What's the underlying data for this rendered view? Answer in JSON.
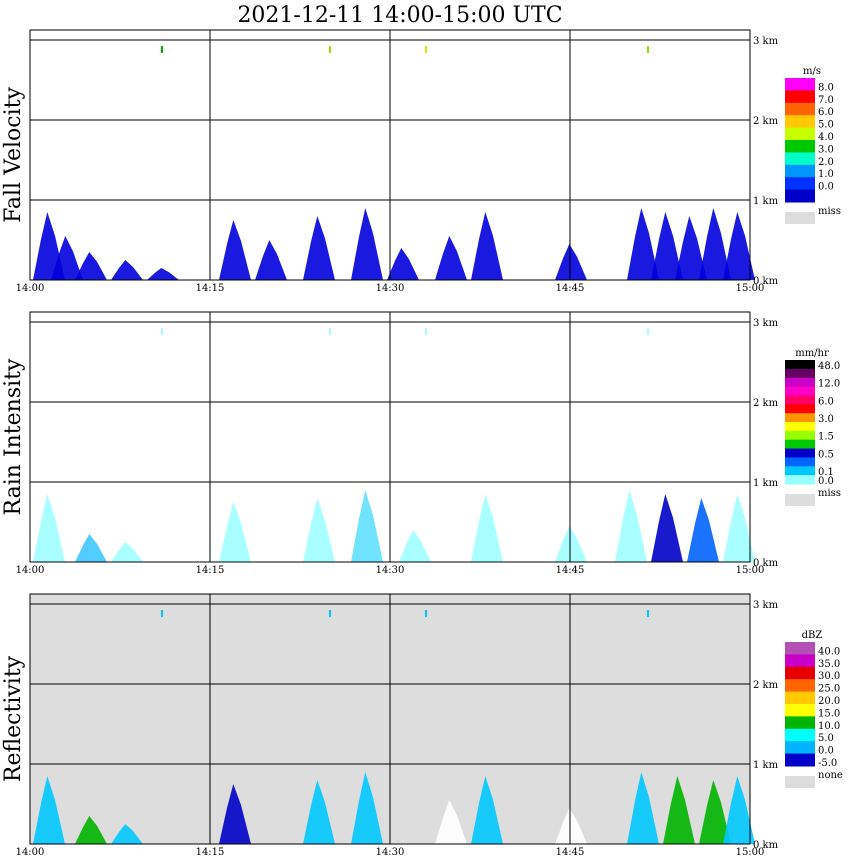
{
  "title": "2021-12-11   14:00-15:00 UTC",
  "x_ticks": [
    "14:00",
    "14:15",
    "14:30",
    "14:45",
    "15:00"
  ],
  "height_ticks": [
    "0 km",
    "1 km",
    "2 km",
    "3 km"
  ],
  "panels": [
    {
      "id": "fall-velocity",
      "label": "Fall Velocity",
      "unit": "m/s",
      "background": "#ffffff",
      "scale": [
        {
          "label": "8.0",
          "color": "#ff00ff"
        },
        {
          "label": "7.0",
          "color": "#ff0000"
        },
        {
          "label": "6.0",
          "color": "#ff6400"
        },
        {
          "label": "5.0",
          "color": "#ffc800"
        },
        {
          "label": "4.0",
          "color": "#c8ff00"
        },
        {
          "label": "3.0",
          "color": "#00c800"
        },
        {
          "label": "2.0",
          "color": "#00ffc8"
        },
        {
          "label": "1.0",
          "color": "#0096ff"
        },
        {
          "label": "0.0",
          "color": "#0032ff"
        },
        {
          "label": "",
          "color": "#0000c8"
        }
      ],
      "miss_label": "miss",
      "echo": [
        {
          "t": 1.5,
          "h": 0.85,
          "color": "#0000dd"
        },
        {
          "t": 3.0,
          "h": 0.55,
          "color": "#0000dd"
        },
        {
          "t": 5.0,
          "h": 0.35,
          "color": "#0000dd"
        },
        {
          "t": 8.0,
          "h": 0.25,
          "color": "#0000dd"
        },
        {
          "t": 11.0,
          "h": 0.15,
          "color": "#0000dd"
        },
        {
          "t": 17.0,
          "h": 0.75,
          "color": "#0000dd"
        },
        {
          "t": 20.0,
          "h": 0.5,
          "color": "#0000dd"
        },
        {
          "t": 24.0,
          "h": 0.8,
          "color": "#0000dd"
        },
        {
          "t": 28.0,
          "h": 0.9,
          "color": "#0000dd"
        },
        {
          "t": 31.0,
          "h": 0.4,
          "color": "#0000dd"
        },
        {
          "t": 35.0,
          "h": 0.55,
          "color": "#0000dd"
        },
        {
          "t": 38.0,
          "h": 0.85,
          "color": "#0000dd"
        },
        {
          "t": 45.0,
          "h": 0.45,
          "color": "#0000dd"
        },
        {
          "t": 51.0,
          "h": 0.9,
          "color": "#0000dd"
        },
        {
          "t": 53.0,
          "h": 0.85,
          "color": "#0000dd"
        },
        {
          "t": 55.0,
          "h": 0.8,
          "color": "#0000dd"
        },
        {
          "t": 57.0,
          "h": 0.9,
          "color": "#0000dd"
        },
        {
          "t": 59.0,
          "h": 0.85,
          "color": "#0000dd"
        }
      ],
      "flecks": [
        {
          "t": 11.0,
          "h": 2.9,
          "color": "#00aa00"
        },
        {
          "t": 25.0,
          "h": 2.9,
          "color": "#a0e000"
        },
        {
          "t": 33.0,
          "h": 2.9,
          "color": "#e0e000"
        },
        {
          "t": 51.5,
          "h": 2.9,
          "color": "#80e000"
        }
      ]
    },
    {
      "id": "rain-intensity",
      "label": "Rain Intensity",
      "unit": "mm/hr",
      "background": "#ffffff",
      "scale": [
        {
          "label": "48.0",
          "color": "#000000"
        },
        {
          "label": "",
          "color": "#640064"
        },
        {
          "label": "12.0",
          "color": "#c800c8"
        },
        {
          "label": "",
          "color": "#ff00c8"
        },
        {
          "label": "6.0",
          "color": "#ff0064"
        },
        {
          "label": "",
          "color": "#ff0000"
        },
        {
          "label": "3.0",
          "color": "#ff9600"
        },
        {
          "label": "",
          "color": "#ffff00"
        },
        {
          "label": "1.5",
          "color": "#96ff00"
        },
        {
          "label": "",
          "color": "#00c800"
        },
        {
          "label": "0.5",
          "color": "#0000c8"
        },
        {
          "label": "",
          "color": "#0064ff"
        },
        {
          "label": "0.1",
          "color": "#00c8ff"
        },
        {
          "label": "0.0",
          "color": "#96ffff"
        }
      ],
      "miss_label": "miss",
      "echo": [
        {
          "t": 1.5,
          "h": 0.85,
          "color": "#a0ffff"
        },
        {
          "t": 5.0,
          "h": 0.35,
          "color": "#40c8ff"
        },
        {
          "t": 8.0,
          "h": 0.25,
          "color": "#a0ffff"
        },
        {
          "t": 17.0,
          "h": 0.75,
          "color": "#a0ffff"
        },
        {
          "t": 24.0,
          "h": 0.8,
          "color": "#a0ffff"
        },
        {
          "t": 28.0,
          "h": 0.9,
          "color": "#60e0ff"
        },
        {
          "t": 32.0,
          "h": 0.4,
          "color": "#a0ffff"
        },
        {
          "t": 38.0,
          "h": 0.85,
          "color": "#a0ffff"
        },
        {
          "t": 45.0,
          "h": 0.45,
          "color": "#a0ffff"
        },
        {
          "t": 50.0,
          "h": 0.9,
          "color": "#a0ffff"
        },
        {
          "t": 53.0,
          "h": 0.85,
          "color": "#0000c8"
        },
        {
          "t": 56.0,
          "h": 0.8,
          "color": "#0064ff"
        },
        {
          "t": 59.0,
          "h": 0.85,
          "color": "#a0ffff"
        }
      ],
      "flecks": [
        {
          "t": 11.0,
          "h": 2.9,
          "color": "#a0ffff"
        },
        {
          "t": 25.0,
          "h": 2.9,
          "color": "#a0ffff"
        },
        {
          "t": 33.0,
          "h": 2.9,
          "color": "#a0ffff"
        },
        {
          "t": 51.5,
          "h": 2.9,
          "color": "#a0ffff"
        }
      ]
    },
    {
      "id": "reflectivity",
      "label": "Reflectivity",
      "unit": "dBZ",
      "background": "#dddddd",
      "scale": [
        {
          "label": "40.0",
          "color": "#b450b4"
        },
        {
          "label": "35.0",
          "color": "#c800c8"
        },
        {
          "label": "30.0",
          "color": "#e60000"
        },
        {
          "label": "25.0",
          "color": "#ff6400"
        },
        {
          "label": "20.0",
          "color": "#ffc800"
        },
        {
          "label": "15.0",
          "color": "#ffff00"
        },
        {
          "label": "10.0",
          "color": "#00b400"
        },
        {
          "label": "5.0",
          "color": "#00ffff"
        },
        {
          "label": "0.0",
          "color": "#00b4ff"
        },
        {
          "label": "-5.0",
          "color": "#0000c8"
        }
      ],
      "miss_label": "none",
      "echo": [
        {
          "t": 1.5,
          "h": 0.85,
          "color": "#00c8ff"
        },
        {
          "t": 5.0,
          "h": 0.35,
          "color": "#00b400"
        },
        {
          "t": 8.0,
          "h": 0.25,
          "color": "#00c8ff"
        },
        {
          "t": 17.0,
          "h": 0.75,
          "color": "#0000c8"
        },
        {
          "t": 24.0,
          "h": 0.8,
          "color": "#00c8ff"
        },
        {
          "t": 28.0,
          "h": 0.9,
          "color": "#00c8ff"
        },
        {
          "t": 35.0,
          "h": 0.55,
          "color": "#ffffff"
        },
        {
          "t": 38.0,
          "h": 0.85,
          "color": "#00c8ff"
        },
        {
          "t": 45.0,
          "h": 0.45,
          "color": "#ffffff"
        },
        {
          "t": 51.0,
          "h": 0.9,
          "color": "#00c8ff"
        },
        {
          "t": 54.0,
          "h": 0.85,
          "color": "#00b400"
        },
        {
          "t": 57.0,
          "h": 0.8,
          "color": "#00b400"
        },
        {
          "t": 59.0,
          "h": 0.85,
          "color": "#00c8ff"
        }
      ],
      "flecks": [
        {
          "t": 11.0,
          "h": 2.9,
          "color": "#00c8ff"
        },
        {
          "t": 25.0,
          "h": 2.9,
          "color": "#00c8ff"
        },
        {
          "t": 33.0,
          "h": 2.9,
          "color": "#00c8ff"
        },
        {
          "t": 51.5,
          "h": 2.9,
          "color": "#00c8ff"
        }
      ]
    }
  ],
  "chart_data": {
    "type": "heatmap",
    "x_range_minutes": [
      0,
      60
    ],
    "y_range_km": [
      0,
      3
    ],
    "grid": true
  }
}
